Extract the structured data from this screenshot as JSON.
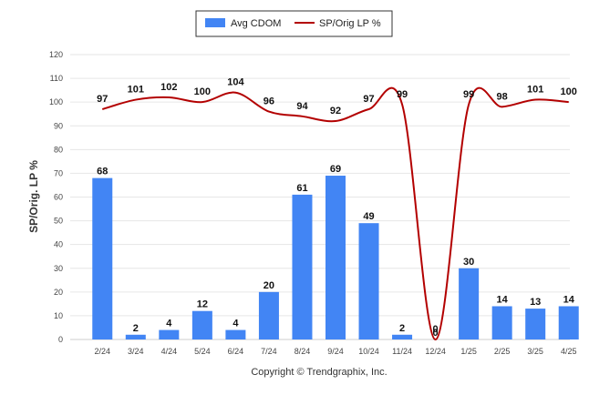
{
  "chart_data": {
    "type": "bar",
    "categories": [
      "2/24",
      "3/24",
      "4/24",
      "5/24",
      "6/24",
      "7/24",
      "8/24",
      "9/24",
      "10/24",
      "11/24",
      "12/24",
      "1/25",
      "2/25",
      "3/25",
      "4/25"
    ],
    "series": [
      {
        "name": "Avg CDOM",
        "type": "bar",
        "color": "#4285f4",
        "values": [
          68,
          2,
          4,
          12,
          4,
          20,
          61,
          69,
          49,
          2,
          0,
          30,
          14,
          13,
          14
        ]
      },
      {
        "name": "SP/Orig LP %",
        "type": "line",
        "color": "#b30000",
        "values": [
          97,
          101,
          102,
          100,
          104,
          96,
          94,
          92,
          97,
          99,
          0,
          99,
          98,
          101,
          100
        ]
      }
    ],
    "ylabel": "SP/Orig. LP %",
    "ylim": [
      0,
      120
    ],
    "yticks": [
      0,
      10,
      20,
      30,
      40,
      50,
      60,
      70,
      80,
      90,
      100,
      110,
      120
    ],
    "grid": true,
    "legend_position": "top-center"
  },
  "credit": "Copyright © Trendgraphix, Inc."
}
